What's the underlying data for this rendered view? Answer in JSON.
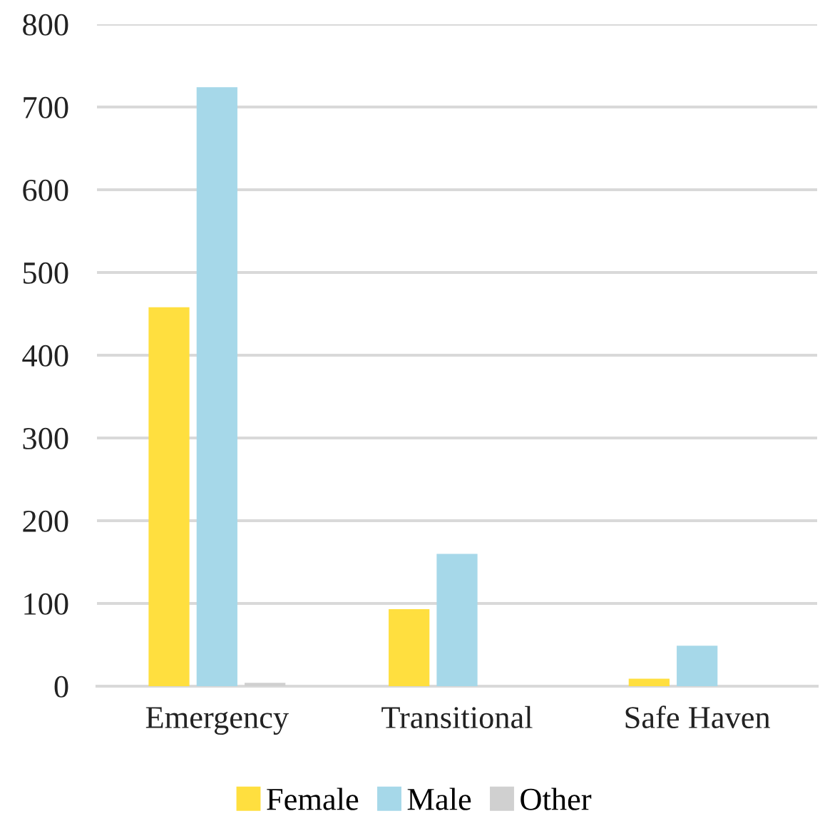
{
  "chart_data": {
    "type": "bar",
    "categories": [
      "Emergency",
      "Transitional",
      "Safe Haven"
    ],
    "series": [
      {
        "name": "Female",
        "color": "#ffdf3f",
        "values": [
          458,
          93,
          9
        ]
      },
      {
        "name": "Male",
        "color": "#a6d8e9",
        "values": [
          724,
          160,
          49
        ]
      },
      {
        "name": "Other",
        "color": "#d0d0d0",
        "values": [
          4,
          0,
          0
        ]
      }
    ],
    "ylim": [
      0,
      800
    ],
    "yticks": [
      0,
      100,
      200,
      300,
      400,
      500,
      600,
      700,
      800
    ],
    "grid": "y",
    "legend": "bottom"
  }
}
